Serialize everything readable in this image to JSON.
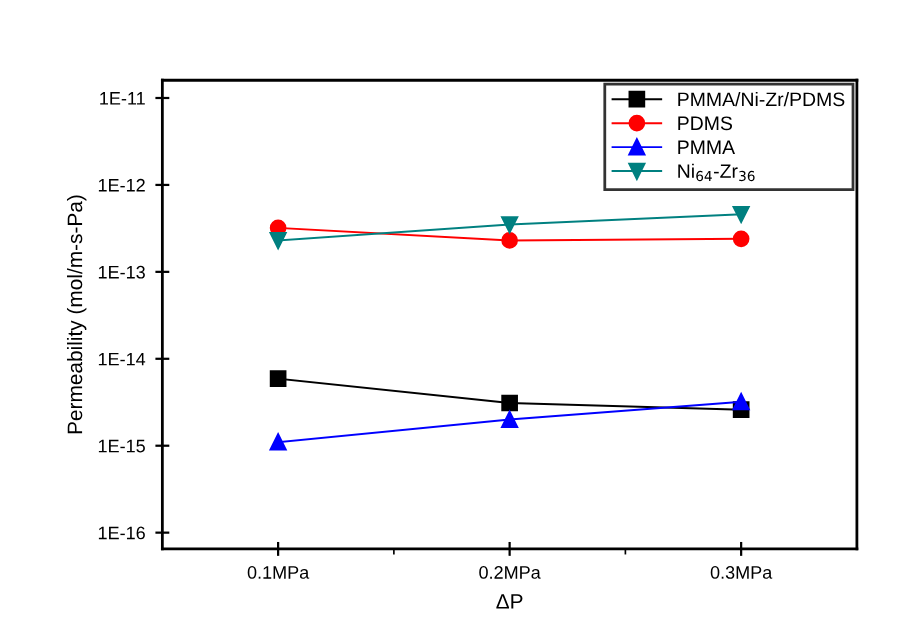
{
  "chart_data": {
    "type": "line",
    "xlabel": "ΔP",
    "ylabel": "Permeability (mol/m-s-Pa)",
    "categories": [
      "0.1MPa",
      "0.2MPa",
      "0.3MPa"
    ],
    "log": "y",
    "ylim": [
      6.5e-17,
      1.6e-11
    ],
    "yticks": [
      {
        "value": 1e-16,
        "label": "1E-16"
      },
      {
        "value": 1e-15,
        "label": "1E-15"
      },
      {
        "value": 1e-14,
        "label": "1E-14"
      },
      {
        "value": 1e-13,
        "label": "1E-13"
      },
      {
        "value": 1e-12,
        "label": "1E-12"
      },
      {
        "value": 1e-11,
        "label": "1E-11"
      }
    ],
    "legend": "top right",
    "grid": false,
    "series": [
      {
        "name": "PMMA/Ni-Zr/PDMS",
        "color": "#000000",
        "marker": "square",
        "values": [
          5.9e-15,
          3.1e-15,
          2.6e-15
        ]
      },
      {
        "name": "PDMS",
        "color": "#ff0000",
        "marker": "circle",
        "values": [
          3.2e-13,
          2.3e-13,
          2.4e-13
        ]
      },
      {
        "name": "PMMA",
        "color": "#0000ff",
        "marker": "triangle",
        "values": [
          1.1e-15,
          2e-15,
          3.2e-15
        ]
      },
      {
        "name": "Ni$_{64}$-Zr$_{36}$",
        "color": "#008080",
        "marker": "triangle_down",
        "values": [
          2.3e-13,
          3.5e-13,
          4.6e-13
        ]
      }
    ]
  }
}
